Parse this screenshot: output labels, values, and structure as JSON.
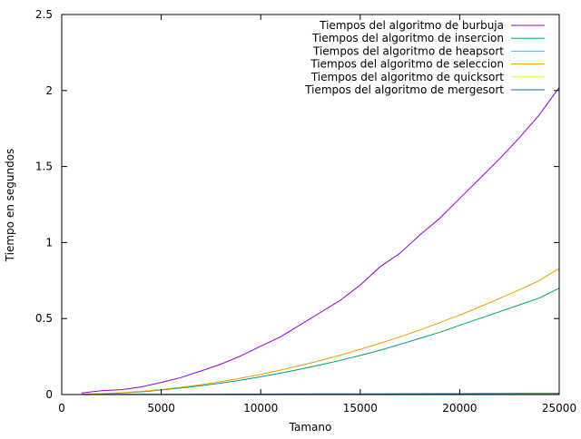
{
  "chart_data": {
    "type": "line",
    "title": "",
    "xlabel": "Tamano",
    "ylabel": "Tiempo en segundos",
    "xlim": [
      0,
      25000
    ],
    "ylim": [
      0,
      2.5
    ],
    "xticks": [
      0,
      5000,
      10000,
      15000,
      20000,
      25000
    ],
    "yticks": [
      0,
      0.5,
      1,
      1.5,
      2,
      2.5
    ],
    "xtick_labels": [
      "0",
      "5000",
      "10000",
      "15000",
      "20000",
      "25000"
    ],
    "ytick_labels": [
      "0",
      "0.5",
      "1",
      "1.5",
      "2",
      "2.5"
    ],
    "grid": false,
    "legend_position": "top-right",
    "x": [
      1000,
      2000,
      3000,
      4000,
      5000,
      6000,
      7000,
      8000,
      9000,
      10000,
      11000,
      12000,
      13000,
      14000,
      15000,
      16000,
      17000,
      18000,
      19000,
      20000,
      21000,
      22000,
      23000,
      24000,
      25000
    ],
    "series": [
      {
        "name": "Tiempos del algoritmo de burbuja",
        "color": "#9400d3",
        "values": [
          0.01,
          0.025,
          0.032,
          0.05,
          0.08,
          0.112,
          0.155,
          0.2,
          0.255,
          0.318,
          0.38,
          0.46,
          0.54,
          0.62,
          0.72,
          0.84,
          0.93,
          1.05,
          1.16,
          1.29,
          1.42,
          1.55,
          1.69,
          1.84,
          2.02
        ]
      },
      {
        "name": "Tiempos del algoritmo de insercion",
        "color": "#009e73",
        "values": [
          0.001,
          0.005,
          0.01,
          0.018,
          0.03,
          0.043,
          0.058,
          0.075,
          0.095,
          0.117,
          0.141,
          0.167,
          0.195,
          0.225,
          0.257,
          0.292,
          0.33,
          0.37,
          0.41,
          0.455,
          0.5,
          0.545,
          0.59,
          0.635,
          0.7
        ]
      },
      {
        "name": "Tiempos del algoritmo de heapsort",
        "color": "#56b4e9",
        "values": [
          0.0002,
          0.0004,
          0.0006,
          0.0008,
          0.001,
          0.0012,
          0.0014,
          0.0016,
          0.0018,
          0.002,
          0.0022,
          0.0024,
          0.0026,
          0.0028,
          0.003,
          0.0032,
          0.0034,
          0.0036,
          0.0038,
          0.004,
          0.0042,
          0.0044,
          0.0046,
          0.0048,
          0.005
        ]
      },
      {
        "name": "Tiempos del algoritmo de seleccion",
        "color": "#e69f00",
        "values": [
          0.001,
          0.006,
          0.012,
          0.021,
          0.033,
          0.048,
          0.065,
          0.085,
          0.108,
          0.133,
          0.161,
          0.191,
          0.224,
          0.259,
          0.297,
          0.337,
          0.38,
          0.425,
          0.473,
          0.523,
          0.576,
          0.632,
          0.69,
          0.75,
          0.83
        ]
      },
      {
        "name": "Tiempos del algoritmo de quicksort",
        "color": "#f0e442",
        "values": [
          0.0001,
          0.0002,
          0.0003,
          0.0004,
          0.0005,
          0.0006,
          0.0007,
          0.0008,
          0.0009,
          0.001,
          0.0011,
          0.0012,
          0.0013,
          0.0014,
          0.0015,
          0.0016,
          0.0017,
          0.0018,
          0.0019,
          0.002,
          0.0021,
          0.0022,
          0.0023,
          0.0024,
          0.0025
        ]
      },
      {
        "name": "Tiempos del algoritmo de mergesort",
        "color": "#0072b2",
        "values": [
          0.0003,
          0.0006,
          0.0009,
          0.0012,
          0.0015,
          0.0018,
          0.0021,
          0.0024,
          0.0027,
          0.003,
          0.0033,
          0.0036,
          0.0039,
          0.0042,
          0.0045,
          0.0048,
          0.0051,
          0.0054,
          0.0057,
          0.006,
          0.0063,
          0.0066,
          0.0069,
          0.0072,
          0.0075
        ]
      }
    ]
  }
}
